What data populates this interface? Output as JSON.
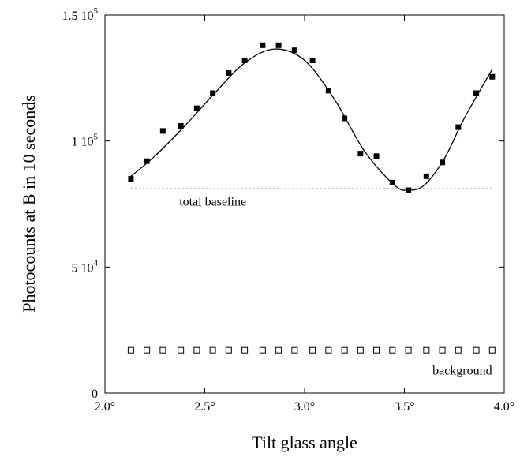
{
  "chart_data": {
    "type": "scatter",
    "title": "",
    "xlabel": "Tilt glass angle",
    "ylabel": "Photocounts at B in 10 seconds",
    "xlim": [
      2.0,
      4.0
    ],
    "ylim": [
      0,
      150000
    ],
    "grid": false,
    "x_ticks": [
      {
        "value": 2.0,
        "label": "2.0°"
      },
      {
        "value": 2.5,
        "label": "2.5°"
      },
      {
        "value": 3.0,
        "label": "3.0°"
      },
      {
        "value": 3.5,
        "label": "3.5°"
      },
      {
        "value": 4.0,
        "label": "4.0°"
      }
    ],
    "y_ticks": [
      {
        "value": 0,
        "mant": "0",
        "exp": ""
      },
      {
        "value": 50000,
        "mant": "5 10",
        "exp": "4"
      },
      {
        "value": 100000,
        "mant": "1 10",
        "exp": "5"
      },
      {
        "value": 150000,
        "mant": "1.5 10",
        "exp": "5"
      }
    ],
    "series": [
      {
        "marker": "filled-square",
        "x": [
          2.13,
          2.21,
          2.29,
          2.38,
          2.46,
          2.54,
          2.62,
          2.7,
          2.79,
          2.87,
          2.95,
          3.04,
          3.12,
          3.2,
          3.28,
          3.36,
          3.44,
          3.52,
          3.61,
          3.69,
          3.77,
          3.86,
          3.94
        ],
        "y": [
          85000,
          92000,
          104000,
          106000,
          113000,
          119000,
          127000,
          132000,
          138000,
          138000,
          136000,
          132000,
          120000,
          109000,
          95000,
          94000,
          83500,
          80500,
          86000,
          91500,
          105500,
          119000,
          125500
        ]
      },
      {
        "marker": "open-square",
        "x": [
          2.13,
          2.21,
          2.29,
          2.38,
          2.46,
          2.54,
          2.62,
          2.7,
          2.79,
          2.87,
          2.95,
          3.04,
          3.12,
          3.2,
          3.28,
          3.36,
          3.44,
          3.52,
          3.61,
          3.69,
          3.77,
          3.86,
          3.94
        ],
        "y": [
          17000,
          17000,
          17000,
          17000,
          17000,
          17000,
          17000,
          17000,
          17000,
          17000,
          17000,
          17000,
          17000,
          17000,
          17000,
          17000,
          17000,
          17000,
          17000,
          17000,
          17000,
          17000,
          17000
        ]
      }
    ],
    "fit_curve": {
      "x": [
        2.13,
        2.25,
        2.4,
        2.55,
        2.7,
        2.85,
        3.0,
        3.15,
        3.3,
        3.45,
        3.52,
        3.6,
        3.7,
        3.8,
        3.94
      ],
      "y": [
        86000,
        94000,
        106000,
        119000,
        131000,
        136500,
        132000,
        116500,
        96000,
        82500,
        80500,
        82500,
        93000,
        109000,
        128500
      ]
    },
    "baseline": {
      "y": 81000,
      "x": [
        2.13,
        3.94
      ],
      "style": "dotted"
    },
    "annotations": [
      {
        "text": "total baseline",
        "x": 2.54,
        "y": 76000
      },
      {
        "text": "background",
        "x": 3.79,
        "y": 9000
      }
    ]
  }
}
